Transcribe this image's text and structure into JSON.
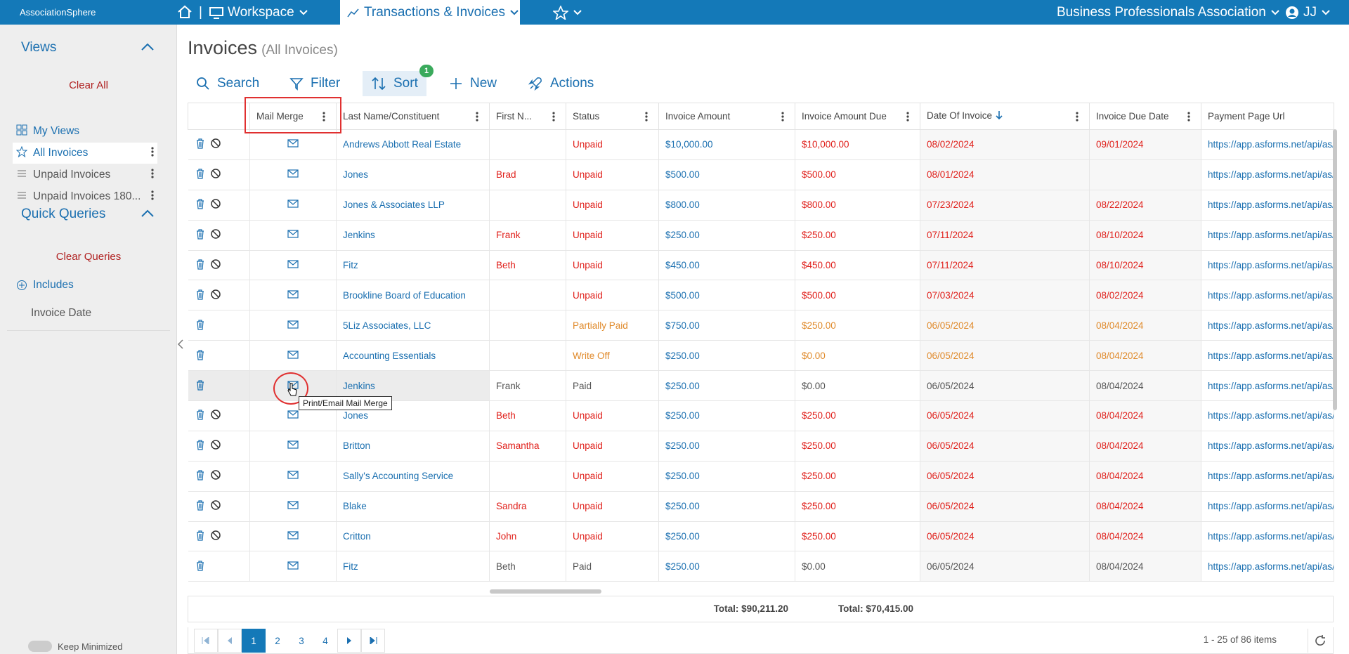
{
  "nav": {
    "brand": "AssociationSphere",
    "workspace": "Workspace",
    "transactions": "Transactions & Invoices",
    "org": "Business Professionals Association",
    "user": "JJ"
  },
  "sidebar": {
    "views_title": "Views",
    "clear_all": "Clear All",
    "views": [
      "My Views",
      "All Invoices",
      "Unpaid Invoices",
      "Unpaid Invoices 180..."
    ],
    "quick_title": "Quick Queries",
    "clear_queries": "Clear Queries",
    "includes": "Includes",
    "invoice_date": "Invoice Date",
    "keep_minimized": "Keep Minimized"
  },
  "page": {
    "title": "Invoices",
    "subtitle": "(All Invoices)"
  },
  "toolbar": {
    "search": "Search",
    "filter": "Filter",
    "sort": "Sort",
    "sort_badge": 1,
    "new": "New",
    "actions": "Actions"
  },
  "table": {
    "columns": [
      "Mail Merge",
      "Last Name/Constituent",
      "First N...",
      "Status",
      "Invoice Amount",
      "Invoice Amount Due",
      "Date Of Invoice",
      "Invoice Due Date",
      "Payment Page Url"
    ],
    "rows": [
      {
        "last": "Andrews Abbott Real Estate",
        "first": null,
        "status": "Unpaid",
        "amount": "$10,000.00",
        "due": "$10,000.00",
        "date": "08/02/2024",
        "due_date": "09/01/2024",
        "url": "https://app.asforms.net/api/as/",
        "void": true,
        "tone": "red"
      },
      {
        "last": "Jones",
        "first": "Brad",
        "status": "Unpaid",
        "amount": "$500.00",
        "due": "$500.00",
        "date": "08/01/2024",
        "due_date": null,
        "url": "https://app.asforms.net/api/as/",
        "void": true,
        "tone": "red"
      },
      {
        "last": "Jones & Associates LLP",
        "first": null,
        "status": "Unpaid",
        "amount": "$800.00",
        "due": "$800.00",
        "date": "07/23/2024",
        "due_date": "08/22/2024",
        "url": "https://app.asforms.net/api/as/",
        "void": true,
        "tone": "red"
      },
      {
        "last": "Jenkins",
        "first": "Frank",
        "status": "Unpaid",
        "amount": "$250.00",
        "due": "$250.00",
        "date": "07/11/2024",
        "due_date": "08/10/2024",
        "url": "https://app.asforms.net/api/as/",
        "void": true,
        "tone": "red"
      },
      {
        "last": "Fitz",
        "first": "Beth",
        "status": "Unpaid",
        "amount": "$450.00",
        "due": "$450.00",
        "date": "07/11/2024",
        "due_date": "08/10/2024",
        "url": "https://app.asforms.net/api/as/",
        "void": true,
        "tone": "red"
      },
      {
        "last": "Brookline Board of Education",
        "first": null,
        "status": "Unpaid",
        "amount": "$500.00",
        "due": "$500.00",
        "date": "07/03/2024",
        "due_date": "08/02/2024",
        "url": "https://app.asforms.net/api/as/",
        "void": true,
        "tone": "red"
      },
      {
        "last": "5Liz Associates, LLC",
        "first": null,
        "status": "Partially Paid",
        "amount": "$750.00",
        "due": "$250.00",
        "date": "06/05/2024",
        "due_date": "08/04/2024",
        "url": "https://app.asforms.net/api/as/",
        "void": false,
        "tone": "orange"
      },
      {
        "last": "Accounting Essentials",
        "first": null,
        "status": "Write Off",
        "amount": "$250.00",
        "due": "$0.00",
        "date": "06/05/2024",
        "due_date": "08/04/2024",
        "url": "https://app.asforms.net/api/as/",
        "void": false,
        "tone": "orange"
      },
      {
        "last": "Jenkins",
        "first": "Frank",
        "status": "Paid",
        "amount": "$250.00",
        "due": "$0.00",
        "date": "06/05/2024",
        "due_date": "08/04/2024",
        "url": "https://app.asforms.net/api/as/",
        "void": false,
        "tone": "gray"
      },
      {
        "last": "Jones",
        "first": "Beth",
        "status": "Unpaid",
        "amount": "$250.00",
        "due": "$250.00",
        "date": "06/05/2024",
        "due_date": "08/04/2024",
        "url": "https://app.asforms.net/api/as/",
        "void": true,
        "tone": "red"
      },
      {
        "last": "Britton",
        "first": "Samantha",
        "status": "Unpaid",
        "amount": "$250.00",
        "due": "$250.00",
        "date": "06/05/2024",
        "due_date": "08/04/2024",
        "url": "https://app.asforms.net/api/as/",
        "void": true,
        "tone": "red"
      },
      {
        "last": "Sally's Accounting Service",
        "first": null,
        "status": "Unpaid",
        "amount": "$250.00",
        "due": "$250.00",
        "date": "06/05/2024",
        "due_date": "08/04/2024",
        "url": "https://app.asforms.net/api/as/",
        "void": true,
        "tone": "red"
      },
      {
        "last": "Blake",
        "first": "Sandra",
        "status": "Unpaid",
        "amount": "$250.00",
        "due": "$250.00",
        "date": "06/05/2024",
        "due_date": "08/04/2024",
        "url": "https://app.asforms.net/api/as/",
        "void": true,
        "tone": "red"
      },
      {
        "last": "Critton",
        "first": "John",
        "status": "Unpaid",
        "amount": "$250.00",
        "due": "$250.00",
        "date": "06/05/2024",
        "due_date": "08/04/2024",
        "url": "https://app.asforms.net/api/as/",
        "void": true,
        "tone": "red"
      },
      {
        "last": "Fitz",
        "first": "Beth",
        "status": "Paid",
        "amount": "$250.00",
        "due": "$0.00",
        "date": "06/05/2024",
        "due_date": "08/04/2024",
        "url": "https://app.asforms.net/api/as/",
        "void": false,
        "tone": "gray"
      }
    ],
    "totals": {
      "amount": "Total: $90,211.20",
      "due": "Total: $70,415.00"
    }
  },
  "tooltip": "Print/Email Mail Merge",
  "pager": {
    "pages": [
      1,
      2,
      3,
      4
    ],
    "summary": "1 - 25 of 86 items"
  }
}
